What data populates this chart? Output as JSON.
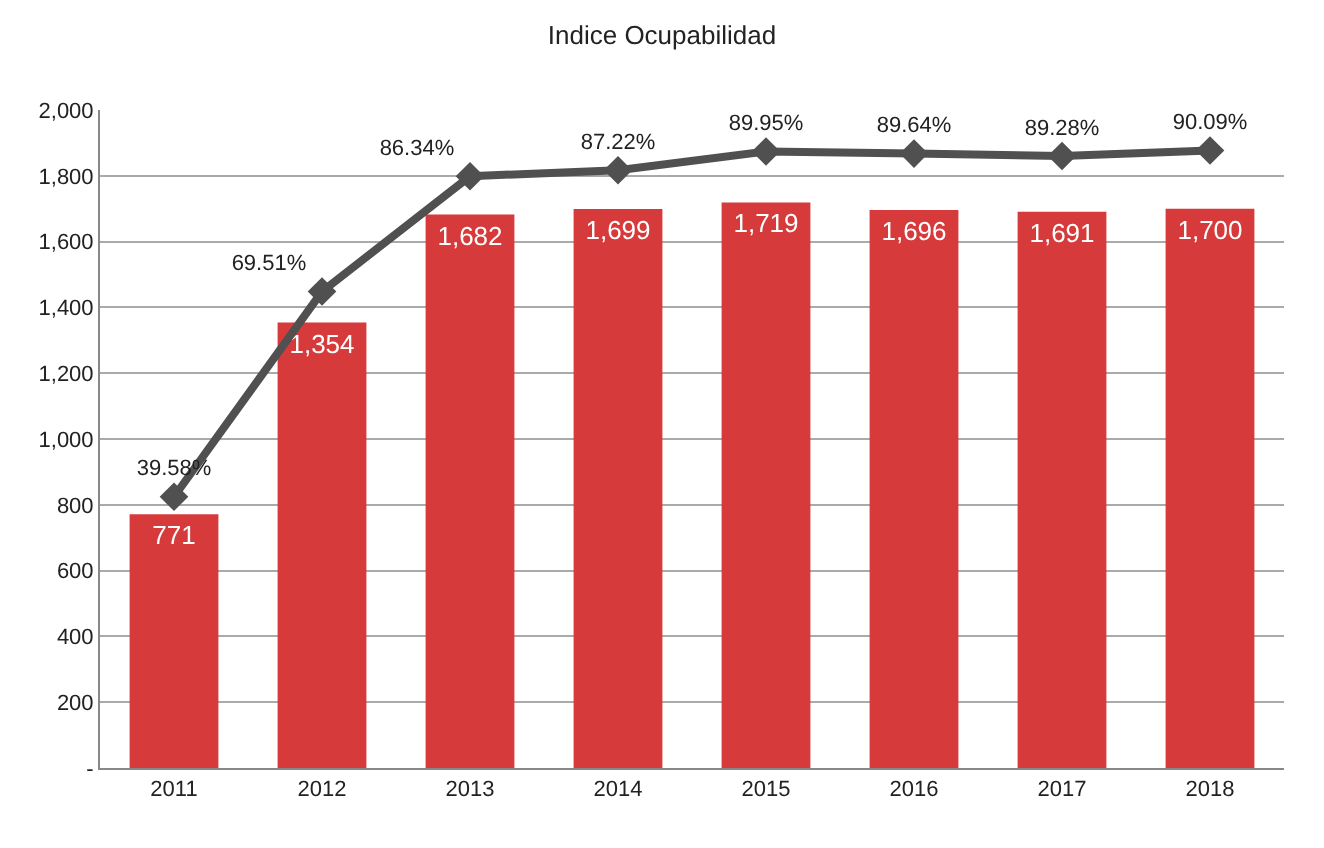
{
  "chart_data": {
    "type": "bar",
    "title": "Indice Ocupabilidad",
    "categories": [
      "2011",
      "2012",
      "2013",
      "2014",
      "2015",
      "2016",
      "2017",
      "2018"
    ],
    "series": [
      {
        "color": "#d63a3a",
        "values": [
          771,
          1354,
          1682,
          1699,
          1719,
          1696,
          1691,
          1700
        ],
        "value_labels": [
          "771",
          "1,354",
          "1,682",
          "1,699",
          "1,719",
          "1,696",
          "1,691",
          "1,700"
        ]
      },
      {
        "type": "line",
        "axis": "y2",
        "color": "#505050",
        "marker": "diamond",
        "values": [
          39.58,
          69.51,
          86.34,
          87.22,
          89.95,
          89.64,
          89.28,
          90.09
        ],
        "value_labels": [
          "39.58%",
          "69.51%",
          "86.34%",
          "87.22%",
          "89.95%",
          "89.64%",
          "89.28%",
          "90.09%"
        ]
      }
    ],
    "ylim": [
      0,
      2000
    ],
    "yticks": [
      {
        "value": 0,
        "label": "-"
      },
      200,
      400,
      600,
      800,
      {
        "value": 1000,
        "label": "1,000"
      },
      {
        "value": 1200,
        "label": "1,200"
      },
      {
        "value": 1400,
        "label": "1,400"
      },
      {
        "value": 1600,
        "label": "1,600"
      },
      {
        "value": 1800,
        "label": "1,800"
      },
      {
        "value": 2000,
        "label": "2,000"
      }
    ],
    "y2lim": [
      0,
      96
    ],
    "tick_labels": [
      "x",
      "y"
    ],
    "grid": "y"
  }
}
